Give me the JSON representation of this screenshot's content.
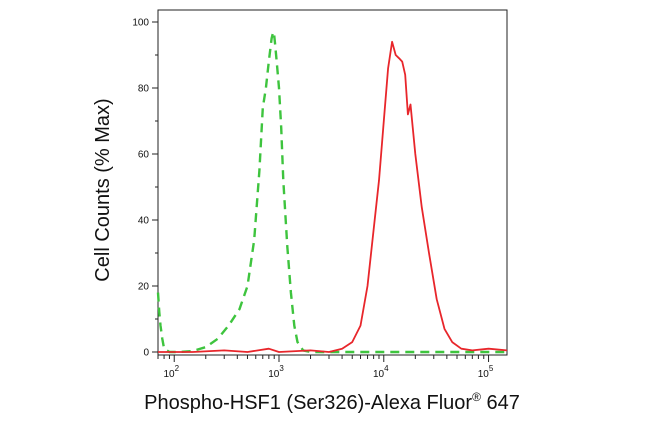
{
  "chart_data": {
    "type": "line",
    "title": "",
    "xlabel_main": "Phospho-HSF1 (Ser326)-Alexa Fluor",
    "xlabel_sup": "®",
    "xlabel_tail": " 647",
    "ylabel": "Cell Counts (% Max)",
    "x_scale": "log",
    "xlim": [
      70,
      150000
    ],
    "ylim": [
      0,
      102
    ],
    "y_ticks": [
      0,
      20,
      40,
      60,
      80,
      100
    ],
    "y_tick_labels": [
      "0",
      "20",
      "40",
      "60",
      "80",
      "100"
    ],
    "x_ticks": [
      100,
      1000,
      10000,
      100000
    ],
    "x_tick_labels": [
      {
        "base": "10",
        "exp": "2"
      },
      {
        "base": "10",
        "exp": "3"
      },
      {
        "base": "10",
        "exp": "4"
      },
      {
        "base": "10",
        "exp": "5"
      }
    ],
    "grid": false,
    "series": [
      {
        "color": "#3ec43e",
        "style": "dashed",
        "x": [
          70,
          72,
          74,
          77,
          80,
          90,
          110,
          150,
          200,
          260,
          330,
          420,
          500,
          580,
          650,
          700,
          750,
          800,
          850,
          880,
          900,
          920,
          950,
          1000,
          1050,
          1100,
          1200,
          1300,
          1400,
          1500,
          1700,
          2000,
          3000,
          10000,
          100000,
          150000
        ],
        "y": [
          18,
          12,
          8,
          4,
          1,
          0,
          0,
          0.3,
          1.5,
          4,
          8,
          13,
          20,
          34,
          55,
          74,
          80,
          88,
          95,
          97,
          96,
          93,
          88,
          80,
          68,
          52,
          32,
          18,
          8,
          3,
          0.5,
          0,
          0,
          0,
          0,
          0
        ]
      },
      {
        "color": "#e8262b",
        "style": "solid",
        "x": [
          70,
          150,
          300,
          500,
          800,
          1000,
          2000,
          3000,
          4000,
          5000,
          6000,
          7000,
          8000,
          9000,
          10000,
          11000,
          12000,
          13000,
          14000,
          15000,
          16000,
          17000,
          18000,
          20000,
          23000,
          27000,
          32000,
          38000,
          45000,
          55000,
          70000,
          100000,
          150000
        ],
        "y": [
          0,
          0,
          0.5,
          0,
          1,
          0,
          0.5,
          0,
          1,
          3,
          8,
          20,
          37,
          52,
          70,
          86,
          94,
          90,
          89,
          88,
          84,
          72,
          75,
          60,
          44,
          30,
          16,
          7,
          3,
          1,
          0.5,
          1,
          0.5
        ]
      }
    ]
  }
}
